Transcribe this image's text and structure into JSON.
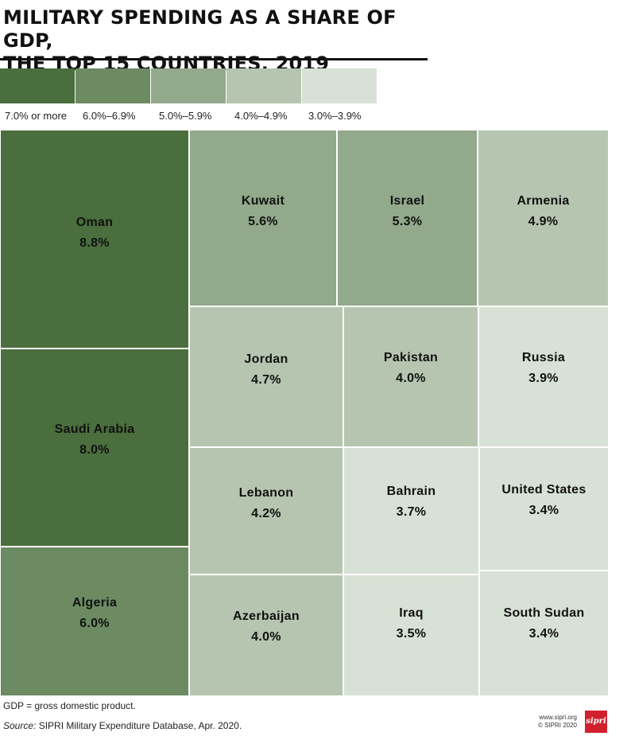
{
  "header": {
    "title": "MILITARY SPENDING AS A SHARE OF GDP,\nTHE TOP 15 COUNTRIES, 2019"
  },
  "legend": [
    {
      "label": "7.0% or more",
      "color": "#4a6e3d"
    },
    {
      "label": "6.0%–6.9%",
      "color": "#6c8b63"
    },
    {
      "label": "5.0%–5.9%",
      "color": "#92a98b"
    },
    {
      "label": "4.0%–4.9%",
      "color": "#b6c5b0"
    },
    {
      "label": "3.0%–3.9%",
      "color": "#d8e1d5"
    }
  ],
  "chart_data": {
    "type": "treemap",
    "unit": "%",
    "items": [
      {
        "name": "Oman",
        "value": 8.8,
        "label": "8.8%",
        "band": 0
      },
      {
        "name": "Saudi Arabia",
        "value": 8.0,
        "label": "8.0%",
        "band": 0
      },
      {
        "name": "Algeria",
        "value": 6.0,
        "label": "6.0%",
        "band": 1
      },
      {
        "name": "Kuwait",
        "value": 5.6,
        "label": "5.6%",
        "band": 2
      },
      {
        "name": "Israel",
        "value": 5.3,
        "label": "5.3%",
        "band": 2
      },
      {
        "name": "Armenia",
        "value": 4.9,
        "label": "4.9%",
        "band": 3
      },
      {
        "name": "Jordan",
        "value": 4.7,
        "label": "4.7%",
        "band": 3
      },
      {
        "name": "Pakistan",
        "value": 4.0,
        "label": "4.0%",
        "band": 3
      },
      {
        "name": "Russia",
        "value": 3.9,
        "label": "3.9%",
        "band": 4
      },
      {
        "name": "Lebanon",
        "value": 4.2,
        "label": "4.2%",
        "band": 3
      },
      {
        "name": "Bahrain",
        "value": 3.7,
        "label": "3.7%",
        "band": 4
      },
      {
        "name": "United States",
        "value": 3.4,
        "label": "3.4%",
        "band": 4
      },
      {
        "name": "Azerbaijan",
        "value": 4.0,
        "label": "4.0%",
        "band": 3
      },
      {
        "name": "Iraq",
        "value": 3.5,
        "label": "3.5%",
        "band": 4
      },
      {
        "name": "South Sudan",
        "value": 3.4,
        "label": "3.4%",
        "band": 4
      }
    ]
  },
  "footer": {
    "note": "GDP = gross domestic product.",
    "source_label": "Source:",
    "source_text": " SIPRI Military Expenditure Database, Apr. 2020.",
    "website": "www.sipri.org",
    "copyright": "© SIPRI 2020",
    "logo_text": "sipri"
  }
}
